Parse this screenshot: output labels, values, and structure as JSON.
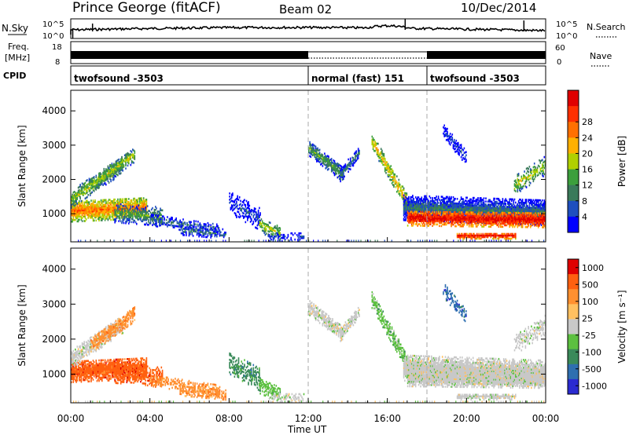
{
  "header": {
    "station": "Prince George (fitACF)",
    "beam": "Beam 02",
    "date": "10/Dec/2014"
  },
  "top_strip": {
    "left_labels": [
      "N.Sky",
      "Freq.",
      "[MHz]",
      "CPID"
    ],
    "right_labels": [
      "N.Search",
      "Nave"
    ],
    "nsky_ticks": [
      "10^5",
      "10^0"
    ],
    "freq_ticks": [
      "18",
      "8"
    ],
    "nave_ticks": [
      "60",
      "0"
    ],
    "cpid_segments": [
      {
        "label": "twofsound -3503",
        "start_hour": 0,
        "end_hour": 12
      },
      {
        "label": "normal (fast) 151",
        "start_hour": 12,
        "end_hour": 18
      },
      {
        "label": "twofsound -3503",
        "start_hour": 18,
        "end_hour": 24
      }
    ]
  },
  "colors": {
    "power_scale": [
      "#0000ff",
      "#1f4fbf",
      "#3a7a5a",
      "#3c9f3c",
      "#b0d000",
      "#ffb000",
      "#ff7000",
      "#ff3000",
      "#e00000"
    ],
    "velocity_scale": [
      "#2b2bd0",
      "#2f6fb0",
      "#3a8a5a",
      "#5cc040",
      "#c8c8c8",
      "#ffc060",
      "#ff9030",
      "#ff6010",
      "#e00000"
    ],
    "grey": "#c8c8c8"
  },
  "chart_data": [
    {
      "type": "heatmap",
      "quantity": "Power",
      "ylabel": "Slant Range [km]",
      "xlabel": "Time UT",
      "x_ticks": [
        "00:00",
        "04:00",
        "08:00",
        "12:00",
        "16:00",
        "20:00",
        "00:00"
      ],
      "x_range_hours": [
        0,
        24
      ],
      "y_ticks": [
        1000,
        2000,
        3000,
        4000
      ],
      "y_range_km": [
        180,
        4600
      ],
      "colorbar": {
        "label": "Power [dB]",
        "ticks": [
          4,
          8,
          12,
          16,
          20,
          24,
          28
        ]
      },
      "dashed_lines_hours": [
        12,
        18
      ]
    },
    {
      "type": "heatmap",
      "quantity": "Velocity",
      "ylabel": "Slant Range [km]",
      "xlabel": "Time UT",
      "x_ticks": [
        "00:00",
        "04:00",
        "08:00",
        "12:00",
        "16:00",
        "20:00",
        "00:00"
      ],
      "x_range_hours": [
        0,
        24
      ],
      "y_ticks": [
        1000,
        2000,
        3000,
        4000
      ],
      "y_range_km": [
        180,
        4600
      ],
      "colorbar": {
        "label": "Velocity [m s⁻¹]",
        "ticks": [
          1000,
          500,
          100,
          25,
          -25,
          -100,
          -500,
          -1000
        ]
      },
      "dashed_lines_hours": [
        12,
        18
      ]
    }
  ],
  "time_axis_label": "Time UT"
}
